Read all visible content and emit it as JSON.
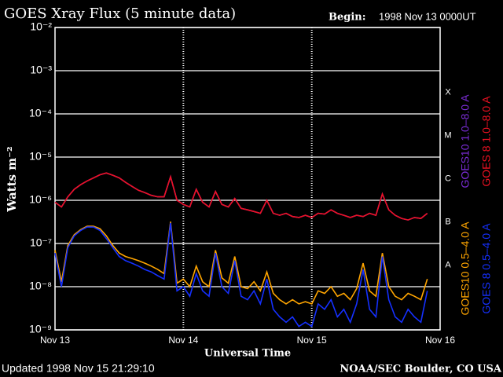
{
  "chart_data": {
    "type": "line",
    "title": "GOES Xray Flux (5 minute data)",
    "begin_label": "Begin:",
    "begin_value": "1998 Nov 13 0000UT",
    "ylabel": "Watts m⁻²",
    "xlabel": "Universal Time",
    "updated": "Updated 1998 Nov 15 21:29:10",
    "credit": "NOAA/SEC Boulder, CO USA",
    "flare_classes": [
      "X",
      "M",
      "C",
      "B",
      "A"
    ],
    "log_scale": true,
    "grid": true,
    "xlim": [
      0,
      3
    ],
    "xticks": [
      {
        "value": 0,
        "label": "Nov 13"
      },
      {
        "value": 1,
        "label": "Nov 14"
      },
      {
        "value": 2,
        "label": "Nov 15"
      },
      {
        "value": 3,
        "label": "Nov 16"
      }
    ],
    "ylim": [
      1e-09,
      0.01
    ],
    "yticks": [
      {
        "value": 1e-09,
        "label": "10⁻⁹"
      },
      {
        "value": 1e-08,
        "label": "10⁻⁸"
      },
      {
        "value": 1e-07,
        "label": "10⁻⁷"
      },
      {
        "value": 1e-06,
        "label": "10⁻⁶"
      },
      {
        "value": 1e-05,
        "label": "10⁻⁵"
      },
      {
        "value": 0.0001,
        "label": "10⁻⁴"
      },
      {
        "value": 0.001,
        "label": "10⁻³"
      },
      {
        "value": 0.01,
        "label": "10⁻²"
      }
    ],
    "x": [
      0,
      0.05,
      0.1,
      0.15,
      0.2,
      0.25,
      0.3,
      0.35,
      0.4,
      0.45,
      0.5,
      0.55,
      0.6,
      0.65,
      0.7,
      0.75,
      0.8,
      0.85,
      0.9,
      0.95,
      1,
      1.05,
      1.1,
      1.15,
      1.2,
      1.25,
      1.3,
      1.35,
      1.4,
      1.45,
      1.5,
      1.55,
      1.6,
      1.65,
      1.7,
      1.75,
      1.8,
      1.85,
      1.9,
      1.95,
      2,
      2.05,
      2.1,
      2.15,
      2.2,
      2.25,
      2.3,
      2.35,
      2.4,
      2.45,
      2.5,
      2.55,
      2.6,
      2.65,
      2.7,
      2.75,
      2.8,
      2.85,
      2.9
    ],
    "series": [
      {
        "name": "GOES10 1.0–8.0 A",
        "color": "#7b2cd6",
        "values": [
          9e-07,
          7e-07,
          1.2e-06,
          1.8e-06,
          2.3e-06,
          2.8e-06,
          3.3e-06,
          3.9e-06,
          4.3e-06,
          3.8e-06,
          3.3e-06,
          2.6e-06,
          2.1e-06,
          1.7e-06,
          1.5e-06,
          1.3e-06,
          1.2e-06,
          1.2e-06,
          3.5e-06,
          1e-06,
          8e-07,
          7e-07,
          1.8e-06,
          9e-07,
          7e-07,
          1.6e-06,
          8e-07,
          7e-07,
          1.1e-06,
          6.5e-07,
          6e-07,
          5.5e-07,
          5e-07,
          1e-06,
          5e-07,
          4.5e-07,
          5e-07,
          4.2e-07,
          4e-07,
          4.5e-07,
          4e-07,
          5e-07,
          4.8e-07,
          6e-07,
          5e-07,
          4.5e-07,
          4e-07,
          4.5e-07,
          4.2e-07,
          5e-07,
          4.5e-07,
          1.4e-06,
          6e-07,
          4.5e-07,
          3.8e-07,
          3.5e-07,
          4e-07,
          3.8e-07,
          5e-07
        ]
      },
      {
        "name": "GOES 8 1.0–8.0 A",
        "color": "#ee1122",
        "values": [
          9e-07,
          7e-07,
          1.2e-06,
          1.8e-06,
          2.3e-06,
          2.8e-06,
          3.3e-06,
          3.9e-06,
          4.3e-06,
          3.8e-06,
          3.3e-06,
          2.6e-06,
          2.1e-06,
          1.7e-06,
          1.5e-06,
          1.3e-06,
          1.2e-06,
          1.2e-06,
          3.5e-06,
          1e-06,
          8e-07,
          7e-07,
          1.8e-06,
          9e-07,
          7e-07,
          1.6e-06,
          8e-07,
          7e-07,
          1.1e-06,
          6.5e-07,
          6e-07,
          5.5e-07,
          5e-07,
          1e-06,
          5e-07,
          4.5e-07,
          5e-07,
          4.2e-07,
          4e-07,
          4.5e-07,
          4e-07,
          5e-07,
          4.8e-07,
          6e-07,
          5e-07,
          4.5e-07,
          4e-07,
          4.5e-07,
          4.2e-07,
          5e-07,
          4.5e-07,
          1.4e-06,
          6e-07,
          4.5e-07,
          3.8e-07,
          3.5e-07,
          4e-07,
          3.8e-07,
          5e-07
        ]
      },
      {
        "name": "GOES10 0.5–4.0 A",
        "color": "#ffa500",
        "values": [
          7e-08,
          1.3e-08,
          9e-08,
          1.6e-07,
          2.1e-07,
          2.5e-07,
          2.5e-07,
          2.2e-07,
          1.5e-07,
          9e-08,
          6e-08,
          5e-08,
          4.5e-08,
          4e-08,
          3.5e-08,
          3e-08,
          2.5e-08,
          2e-08,
          3.2e-07,
          1.2e-08,
          1.5e-08,
          1e-08,
          3e-08,
          1.3e-08,
          1e-08,
          7e-08,
          1.6e-08,
          1.2e-08,
          5e-08,
          1e-08,
          9e-09,
          1.3e-08,
          8e-09,
          2.2e-08,
          7e-09,
          5e-09,
          4e-09,
          5e-09,
          4e-09,
          4.5e-09,
          4e-09,
          8e-09,
          7e-09,
          1e-08,
          6e-09,
          7e-09,
          5e-09,
          9e-09,
          3.5e-08,
          8e-09,
          6e-09,
          6e-08,
          1e-08,
          6e-09,
          5e-09,
          7e-09,
          6e-09,
          5e-09,
          1.5e-08
        ]
      },
      {
        "name": "GOES 8 0.5–4.0 A",
        "color": "#1530ff",
        "values": [
          6e-08,
          1e-08,
          8e-08,
          1.5e-07,
          2e-07,
          2.4e-07,
          2.4e-07,
          2e-07,
          1.3e-07,
          8e-08,
          5e-08,
          4e-08,
          3.5e-08,
          3e-08,
          2.5e-08,
          2.2e-08,
          1.8e-08,
          1.5e-08,
          3e-07,
          8e-09,
          1e-08,
          6e-09,
          2e-08,
          8e-09,
          6e-09,
          6e-08,
          1e-08,
          7e-09,
          4e-08,
          6e-09,
          5e-09,
          8e-09,
          4e-09,
          1.5e-08,
          3e-09,
          2e-09,
          1.5e-09,
          2e-09,
          1.2e-09,
          1.5e-09,
          1.2e-09,
          4e-09,
          3e-09,
          5e-09,
          2e-09,
          3e-09,
          1.5e-09,
          4e-09,
          2.5e-08,
          3e-09,
          2e-09,
          5e-08,
          5e-09,
          2e-09,
          1.5e-09,
          3e-09,
          2e-09,
          1.5e-09,
          8e-09
        ]
      }
    ]
  }
}
